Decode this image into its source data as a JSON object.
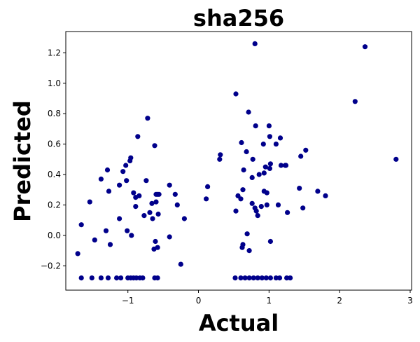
{
  "chart_data": {
    "type": "scatter",
    "title": "sha256",
    "xlabel": "Actual",
    "ylabel": "Predicted",
    "xlim": [
      -1.88,
      3.02
    ],
    "ylim": [
      -0.36,
      1.34
    ],
    "xticks": [
      -1,
      0,
      1,
      2,
      3
    ],
    "xtick_labels": [
      "−1",
      "0",
      "1",
      "2",
      "3"
    ],
    "yticks": [
      -0.2,
      0.0,
      0.2,
      0.4,
      0.6,
      0.8,
      1.0,
      1.2
    ],
    "ytick_labels": [
      "−0.2",
      "0.0",
      "0.2",
      "0.4",
      "0.6",
      "0.8",
      "1.0",
      "1.2"
    ],
    "grid": false,
    "marker_color": "#00008b",
    "series": [
      {
        "points": [
          [
            -1.71,
            -0.12
          ],
          [
            -1.66,
            0.07
          ],
          [
            -1.54,
            0.22
          ],
          [
            -1.47,
            -0.03
          ],
          [
            -1.38,
            0.37
          ],
          [
            -1.31,
            0.03
          ],
          [
            -1.29,
            0.43
          ],
          [
            -1.27,
            0.29
          ],
          [
            -1.25,
            -0.06
          ],
          [
            -1.12,
            0.11
          ],
          [
            -1.12,
            0.33
          ],
          [
            -1.07,
            0.42
          ],
          [
            -1.03,
            0.46
          ],
          [
            -1.02,
            0.36
          ],
          [
            -1.01,
            0.03
          ],
          [
            -0.97,
            0.49
          ],
          [
            -0.96,
            0.51
          ],
          [
            -0.95,
            0.0
          ],
          [
            -0.92,
            0.28
          ],
          [
            -0.89,
            0.19
          ],
          [
            -0.89,
            0.25
          ],
          [
            -0.86,
            0.65
          ],
          [
            -0.84,
            0.26
          ],
          [
            -0.77,
            0.13
          ],
          [
            -0.74,
            0.36
          ],
          [
            -0.72,
            0.77
          ],
          [
            -0.69,
            0.15
          ],
          [
            -0.66,
            0.21
          ],
          [
            -0.65,
            0.11
          ],
          [
            -0.63,
            -0.09
          ],
          [
            -0.62,
            0.59
          ],
          [
            -0.61,
            -0.04
          ],
          [
            -0.6,
            0.27
          ],
          [
            -0.6,
            0.22
          ],
          [
            -0.58,
            0.27
          ],
          [
            -0.57,
            0.14
          ],
          [
            -0.56,
            0.27
          ],
          [
            -0.58,
            -0.08
          ],
          [
            -0.41,
            -0.01
          ],
          [
            -0.41,
            0.33
          ],
          [
            -0.33,
            0.27
          ],
          [
            -0.3,
            0.2
          ],
          [
            -0.25,
            -0.19
          ],
          [
            -0.2,
            0.11
          ],
          [
            -1.66,
            -0.28
          ],
          [
            -1.51,
            -0.28
          ],
          [
            -1.38,
            -0.28
          ],
          [
            -1.28,
            -0.28
          ],
          [
            -1.16,
            -0.28
          ],
          [
            -1.1,
            -0.28
          ],
          [
            -1.0,
            -0.28
          ],
          [
            -0.96,
            -0.28
          ],
          [
            -0.92,
            -0.28
          ],
          [
            -0.88,
            -0.28
          ],
          [
            -0.83,
            -0.28
          ],
          [
            -0.79,
            -0.28
          ],
          [
            -0.62,
            -0.28
          ],
          [
            -0.58,
            -0.28
          ],
          [
            0.11,
            0.24
          ],
          [
            0.13,
            0.32
          ],
          [
            0.3,
            0.5
          ],
          [
            0.31,
            0.53
          ],
          [
            0.53,
            0.93
          ],
          [
            0.53,
            0.16
          ],
          [
            0.56,
            0.26
          ],
          [
            0.6,
            0.24
          ],
          [
            0.61,
            0.61
          ],
          [
            0.62,
            -0.08
          ],
          [
            0.63,
            0.3
          ],
          [
            0.63,
            -0.06
          ],
          [
            0.64,
            0.43
          ],
          [
            0.68,
            0.55
          ],
          [
            0.69,
            0.01
          ],
          [
            0.71,
            0.81
          ],
          [
            0.72,
            -0.1
          ],
          [
            0.76,
            0.21
          ],
          [
            0.76,
            0.38
          ],
          [
            0.77,
            0.5
          ],
          [
            0.8,
            0.18
          ],
          [
            0.8,
            1.26
          ],
          [
            0.81,
            0.72
          ],
          [
            0.82,
            0.16
          ],
          [
            0.84,
            0.13
          ],
          [
            0.86,
            0.4
          ],
          [
            0.89,
            0.19
          ],
          [
            0.92,
            0.6
          ],
          [
            0.93,
            0.29
          ],
          [
            0.93,
            0.41
          ],
          [
            0.95,
            0.45
          ],
          [
            0.97,
            0.2
          ],
          [
            0.97,
            0.28
          ],
          [
            1.0,
            0.72
          ],
          [
            1.01,
            0.65
          ],
          [
            1.01,
            0.44
          ],
          [
            1.02,
            0.47
          ],
          [
            1.02,
            -0.04
          ],
          [
            1.1,
            0.6
          ],
          [
            1.13,
            0.2
          ],
          [
            1.16,
            0.64
          ],
          [
            1.17,
            0.46
          ],
          [
            1.23,
            0.46
          ],
          [
            1.24,
            0.46
          ],
          [
            1.26,
            0.15
          ],
          [
            1.43,
            0.31
          ],
          [
            1.45,
            0.52
          ],
          [
            1.48,
            0.18
          ],
          [
            1.52,
            0.56
          ],
          [
            1.69,
            0.29
          ],
          [
            1.8,
            0.26
          ],
          [
            2.22,
            0.88
          ],
          [
            2.36,
            1.24
          ],
          [
            2.8,
            0.5
          ],
          [
            0.52,
            -0.28
          ],
          [
            0.6,
            -0.28
          ],
          [
            0.66,
            -0.28
          ],
          [
            0.72,
            -0.28
          ],
          [
            0.78,
            -0.28
          ],
          [
            0.84,
            -0.28
          ],
          [
            0.9,
            -0.28
          ],
          [
            0.96,
            -0.28
          ],
          [
            1.02,
            -0.28
          ],
          [
            1.1,
            -0.28
          ],
          [
            1.15,
            -0.28
          ],
          [
            1.25,
            -0.28
          ],
          [
            1.3,
            -0.28
          ]
        ]
      }
    ]
  }
}
